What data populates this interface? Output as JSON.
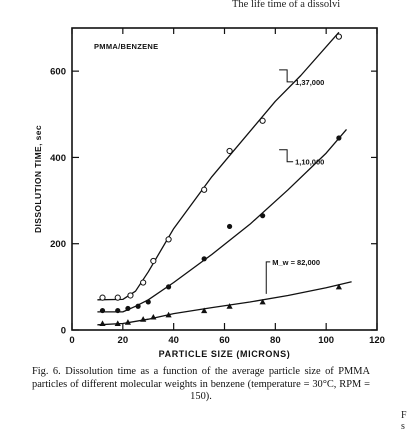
{
  "page": {
    "running_head": "The life time of a dissolvi",
    "margin_fragments": [
      "F",
      "s"
    ]
  },
  "figure": {
    "caption_label": "Fig. 6.",
    "caption_text": "Dissolution time as a function of the average particle size of PMMA particles of different molecular weights in benzene (temperature = 30°C, RPM = 150)."
  },
  "chart_data": {
    "type": "scatter",
    "title": "PMMA/BENZENE",
    "xlabel": "PARTICLE SIZE (MICRONS)",
    "ylabel": "DISSOLUTION TIME, sec",
    "xlim": [
      0,
      120
    ],
    "ylim": [
      0,
      700
    ],
    "xticks": [
      0,
      20,
      40,
      60,
      80,
      100,
      120
    ],
    "yticks": [
      0,
      200,
      400,
      600
    ],
    "grid": false,
    "series": [
      {
        "name": "1,37,000",
        "marker": "open-circle",
        "points": [
          [
            12,
            75
          ],
          [
            18,
            75
          ],
          [
            23,
            80
          ],
          [
            28,
            110
          ],
          [
            32,
            160
          ],
          [
            38,
            210
          ],
          [
            52,
            325
          ],
          [
            62,
            415
          ],
          [
            75,
            485
          ],
          [
            105,
            680
          ]
        ],
        "fit": [
          [
            10,
            70
          ],
          [
            20,
            71
          ],
          [
            25,
            90
          ],
          [
            30,
            135
          ],
          [
            40,
            235
          ],
          [
            55,
            355
          ],
          [
            65,
            425
          ],
          [
            80,
            530
          ],
          [
            90,
            590
          ],
          [
            105,
            690
          ]
        ]
      },
      {
        "name": "1,10,000",
        "marker": "filled-circle",
        "points": [
          [
            12,
            45
          ],
          [
            18,
            45
          ],
          [
            22,
            50
          ],
          [
            26,
            55
          ],
          [
            30,
            65
          ],
          [
            38,
            100
          ],
          [
            52,
            165
          ],
          [
            62,
            240
          ],
          [
            75,
            265
          ],
          [
            105,
            445
          ]
        ],
        "fit": [
          [
            10,
            42
          ],
          [
            20,
            42
          ],
          [
            25,
            55
          ],
          [
            30,
            70
          ],
          [
            40,
            110
          ],
          [
            55,
            175
          ],
          [
            70,
            245
          ],
          [
            85,
            325
          ],
          [
            100,
            410
          ],
          [
            108,
            465
          ]
        ]
      },
      {
        "name": "M_w = 82,000",
        "marker": "filled-triangle",
        "points": [
          [
            12,
            15
          ],
          [
            18,
            15
          ],
          [
            22,
            18
          ],
          [
            28,
            25
          ],
          [
            32,
            30
          ],
          [
            38,
            35
          ],
          [
            52,
            45
          ],
          [
            62,
            55
          ],
          [
            75,
            65
          ],
          [
            105,
            100
          ]
        ],
        "fit": [
          [
            10,
            12
          ],
          [
            20,
            15
          ],
          [
            30,
            25
          ],
          [
            40,
            38
          ],
          [
            55,
            52
          ],
          [
            70,
            65
          ],
          [
            85,
            80
          ],
          [
            100,
            98
          ],
          [
            110,
            112
          ]
        ]
      }
    ],
    "annotations": [
      "1,37,000",
      "1,10,000",
      "M_w = 82,000"
    ]
  }
}
